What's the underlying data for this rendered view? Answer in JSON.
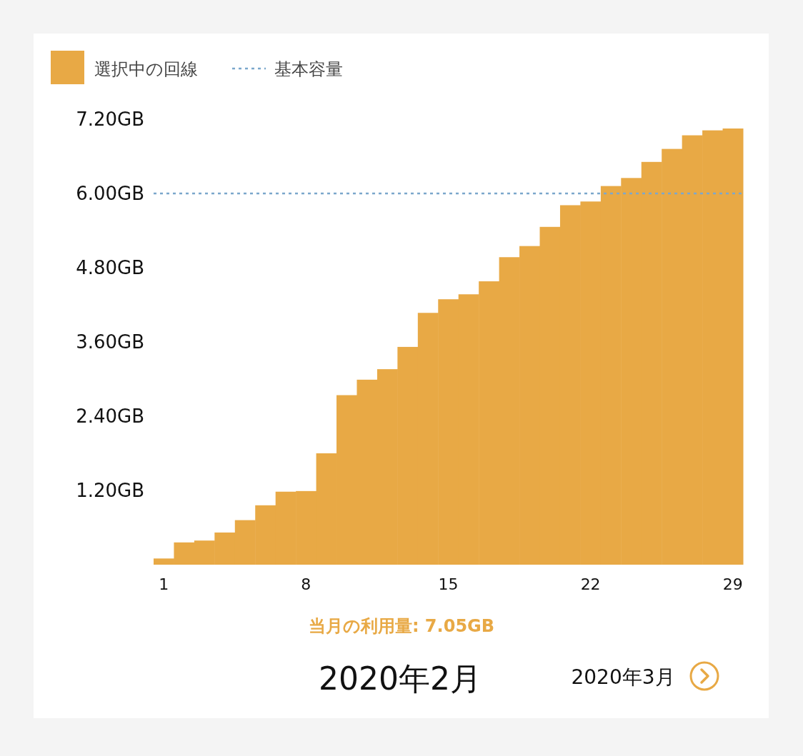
{
  "chart_data": {
    "type": "bar",
    "title": "2020年2月",
    "categories": [
      "1",
      null,
      null,
      null,
      null,
      null,
      null,
      "8",
      null,
      null,
      null,
      null,
      null,
      null,
      "15",
      null,
      null,
      null,
      null,
      null,
      null,
      "22",
      null,
      null,
      null,
      null,
      null,
      null,
      "29"
    ],
    "series": [
      {
        "name": "選択中の回線",
        "color": "#e8a945",
        "values": [
          0.1,
          0.36,
          0.39,
          0.52,
          0.72,
          0.96,
          1.18,
          1.19,
          1.8,
          2.74,
          2.99,
          3.16,
          3.52,
          4.07,
          4.29,
          4.37,
          4.58,
          4.97,
          5.15,
          5.46,
          5.81,
          5.87,
          6.12,
          6.25,
          6.51,
          6.72,
          6.94,
          7.02,
          7.05
        ]
      }
    ],
    "ylim": [
      0,
      7.2
    ],
    "yticks": [
      {
        "value": 1.2,
        "label": "1.20GB"
      },
      {
        "value": 2.4,
        "label": "2.40GB"
      },
      {
        "value": 3.6,
        "label": "3.60GB"
      },
      {
        "value": 4.8,
        "label": "4.80GB"
      },
      {
        "value": 6,
        "label": "6.00GB"
      },
      {
        "value": 7.2,
        "label": "7.20GB"
      }
    ],
    "ref_lines": [
      {
        "axis": "y",
        "value": 6,
        "label": "基本容量",
        "color": "#7ba7cc",
        "line_style": "dotted"
      }
    ],
    "annotations": [
      "当月の利用量: 7.05GB",
      "2020年3月"
    ],
    "legend": "top left",
    "grid": false
  }
}
